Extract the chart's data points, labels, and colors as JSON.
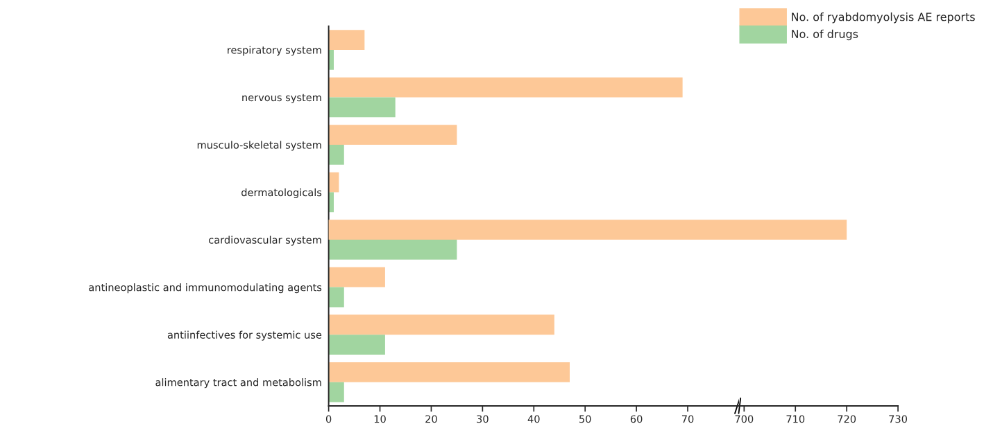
{
  "chart_data": [
    {
      "type": "bar",
      "orientation": "horizontal",
      "categories": [
        "respiratory system",
        "nervous system",
        "musculo-skeletal system",
        "dermatologicals",
        "cardiovascular system",
        "antineoplastic and immunomodulating agents",
        "antiinfectives for systemic use",
        "alimentary tract and metabolism"
      ],
      "series": [
        {
          "name": "No. of ryabdomyolysis AE reports",
          "color": "#fdc897",
          "values": [
            7,
            69,
            25,
            2,
            null,
            11,
            44,
            47
          ]
        },
        {
          "name": "No. of drugs",
          "color": "#a1d5a0",
          "values": [
            1,
            13,
            3,
            1,
            25,
            3,
            11,
            3
          ]
        }
      ],
      "xlim": [
        0,
        80
      ],
      "xticks": [
        0,
        10,
        20,
        30,
        40,
        50,
        60,
        70
      ],
      "legend": "top right",
      "grid": false
    },
    {
      "type": "bar",
      "orientation": "horizontal",
      "series": [
        {
          "color": "#fdc897",
          "values": [
            null,
            null,
            null,
            null,
            720,
            null,
            null,
            null
          ]
        },
        {
          "color": "#a1d5a0",
          "values": [
            null,
            null,
            null,
            null,
            null,
            null,
            null,
            null
          ]
        }
      ],
      "xlim": [
        699,
        730
      ],
      "xticks": [
        700,
        710,
        720,
        730
      ],
      "tick_labels": "x",
      "grid": false
    }
  ]
}
